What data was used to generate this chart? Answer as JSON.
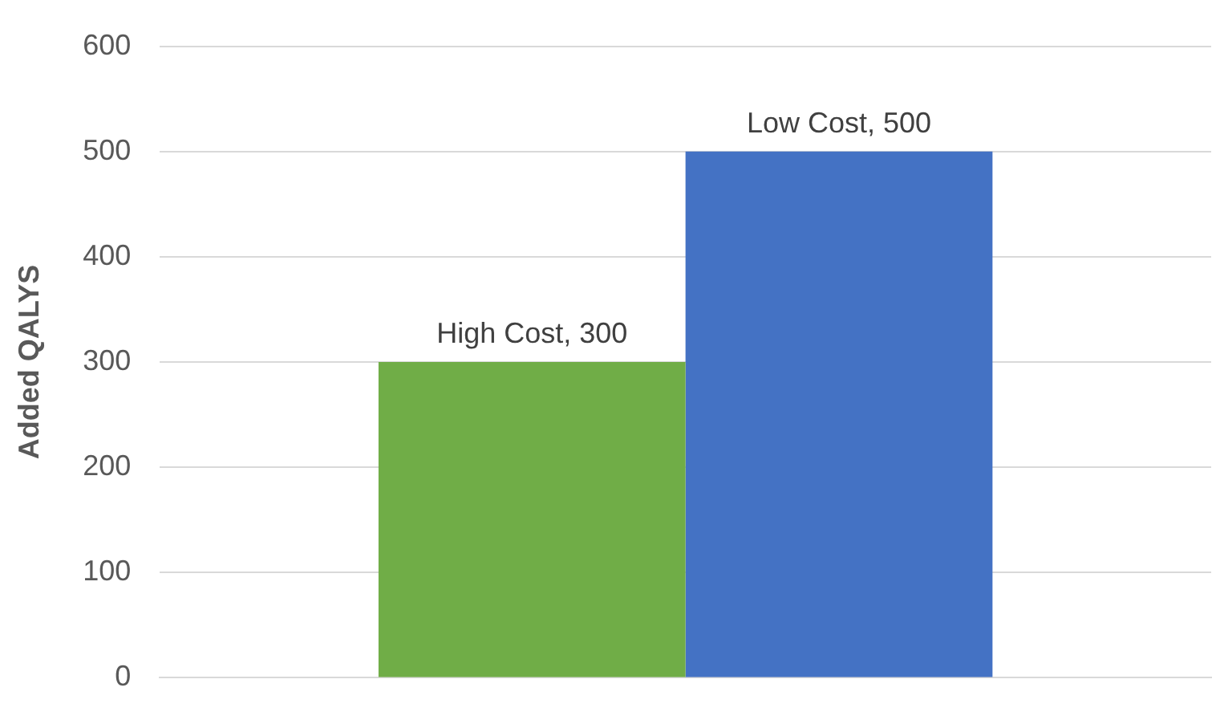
{
  "chart_data": {
    "type": "bar",
    "ylabel": "Added QALYS",
    "categories": [
      null
    ],
    "series": [
      {
        "color": "#70ad47",
        "values": [
          300
        ],
        "value_labels": [
          "High Cost, 300"
        ]
      },
      {
        "color": "#4472c4",
        "values": [
          500
        ],
        "value_labels": [
          "Low Cost, 500"
        ]
      }
    ],
    "ylim": [
      0,
      600
    ],
    "yticks": [
      0,
      100,
      200,
      300,
      400,
      500,
      600
    ],
    "grid": "y",
    "legend": false
  }
}
